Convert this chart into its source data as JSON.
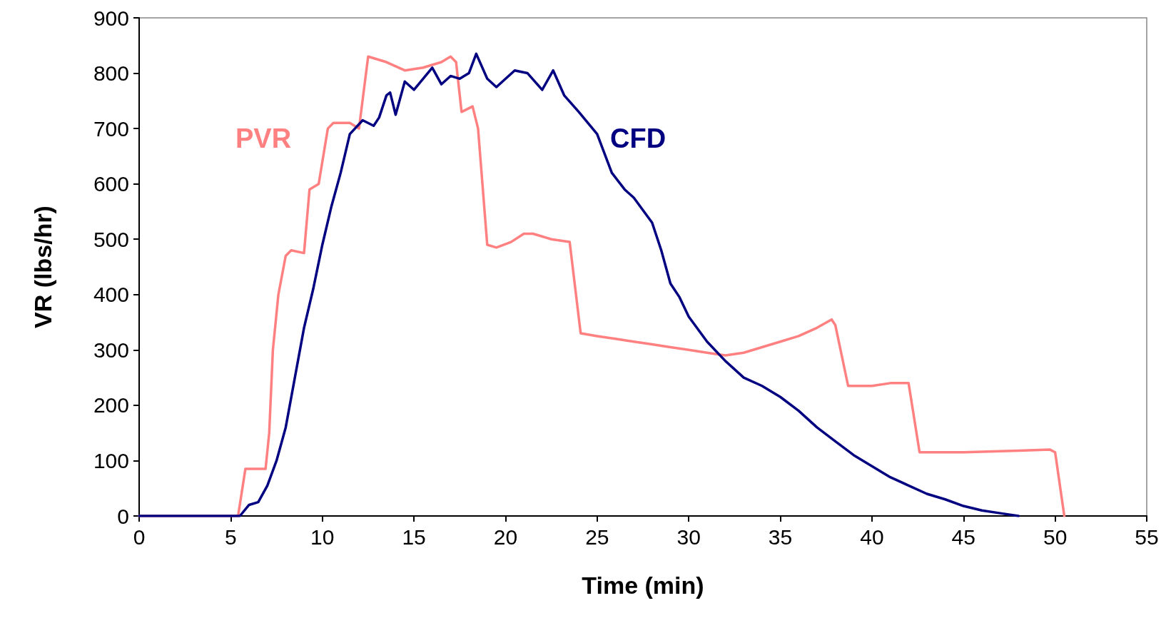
{
  "chart_data": {
    "type": "line",
    "xlabel": "Time (min)",
    "ylabel": "VR (lbs/hr)",
    "xlim": [
      0,
      55
    ],
    "xticks": [
      0,
      5,
      10,
      15,
      20,
      25,
      30,
      35,
      40,
      45,
      50,
      55
    ],
    "ylim": [
      0,
      900
    ],
    "yticks": [
      0,
      100,
      200,
      300,
      400,
      500,
      600,
      700,
      800,
      900
    ],
    "grid": false,
    "legend": false,
    "marker": "none",
    "line_style": "solid",
    "series": [
      {
        "name": "PVR",
        "color": "#ff8080",
        "x": [
          0,
          5.4,
          5.8,
          6.9,
          7.1,
          7.3,
          7.6,
          8,
          8.3,
          9,
          9.3,
          9.8,
          10.3,
          10.6,
          11.5,
          12,
          12.5,
          13.5,
          14.5,
          15.5,
          16.5,
          17,
          17.3,
          17.6,
          18.2,
          18.5,
          19,
          19.5,
          20.3,
          21,
          21.5,
          22.5,
          23.5,
          24.1,
          25,
          26,
          27,
          28,
          29,
          30,
          31,
          32,
          33,
          34,
          35,
          36,
          37,
          37.8,
          38,
          38.7,
          40,
          41,
          42,
          42.6,
          45,
          48,
          49.7,
          50,
          50.5
        ],
        "values": [
          0,
          0,
          85,
          85,
          150,
          300,
          400,
          470,
          480,
          475,
          590,
          600,
          700,
          710,
          710,
          700,
          830,
          820,
          805,
          810,
          820,
          830,
          820,
          730,
          740,
          700,
          490,
          485,
          495,
          510,
          510,
          500,
          495,
          330,
          325,
          320,
          315,
          310,
          305,
          300,
          295,
          290,
          295,
          305,
          315,
          325,
          340,
          355,
          345,
          235,
          235,
          240,
          240,
          115,
          115,
          118,
          120,
          115,
          0
        ]
      },
      {
        "name": "CFD",
        "color": "#000080",
        "x": [
          0,
          5.5,
          6,
          6.5,
          7,
          7.5,
          8,
          8.5,
          9,
          9.5,
          10,
          10.5,
          11,
          11.5,
          12.2,
          12.8,
          13.1,
          13.5,
          13.7,
          14,
          14.5,
          15,
          15.5,
          16,
          16.5,
          17,
          17.5,
          18,
          18.4,
          19,
          19.5,
          20.5,
          21.2,
          22,
          22.6,
          23.2,
          24,
          25,
          25.8,
          26.5,
          27,
          28,
          28.5,
          29,
          29.5,
          30,
          31,
          32,
          33,
          34,
          35,
          36,
          37,
          38,
          39,
          40,
          41,
          42,
          43,
          44,
          45,
          46,
          47,
          48
        ],
        "values": [
          0,
          0,
          20,
          25,
          55,
          100,
          160,
          250,
          340,
          410,
          490,
          560,
          620,
          690,
          715,
          705,
          720,
          760,
          765,
          725,
          785,
          770,
          790,
          810,
          780,
          795,
          790,
          800,
          835,
          790,
          775,
          805,
          800,
          770,
          805,
          760,
          730,
          690,
          620,
          590,
          575,
          530,
          480,
          420,
          395,
          360,
          315,
          280,
          250,
          235,
          215,
          190,
          160,
          135,
          110,
          90,
          70,
          55,
          40,
          30,
          18,
          10,
          5,
          0
        ]
      }
    ]
  }
}
